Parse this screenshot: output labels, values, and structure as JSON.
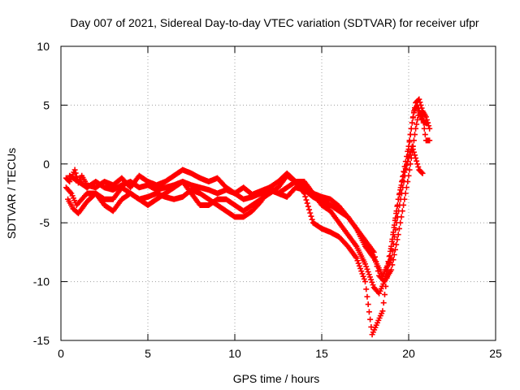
{
  "chart_data": {
    "type": "scatter",
    "title": "Day 007 of 2021, Sidereal Day-to-day VTEC variation (SDTVAR) for receiver ufpr",
    "xlabel": "GPS time / hours",
    "ylabel": "SDTVAR / TECUs",
    "xlim": [
      0,
      25
    ],
    "ylim": [
      -15,
      10
    ],
    "xticks": [
      0,
      5,
      10,
      15,
      20,
      25
    ],
    "yticks": [
      -15,
      -10,
      -5,
      0,
      5,
      10
    ],
    "xtick_labels": [
      "0",
      "5",
      "10",
      "15",
      "20",
      "25"
    ],
    "ytick_labels": [
      "-15",
      "-10",
      "-5",
      "0",
      "5",
      "10"
    ],
    "grid": true,
    "grid_style": "dotted",
    "marker": "+",
    "legend": "none",
    "colors": {
      "series": "#ff0000",
      "grid": "#a0a0a0",
      "axis": "#000000"
    },
    "series": [
      {
        "x": [
          0.3,
          0.5,
          0.8,
          1.0,
          1.2,
          1.5,
          2.0,
          2.5,
          3.0,
          3.5,
          4.0,
          4.5,
          5.0,
          5.5,
          6.0,
          6.5,
          7.0,
          7.5,
          8.0,
          8.5,
          9.0,
          9.5,
          10.0,
          10.5,
          11.0,
          11.5,
          12.0,
          12.5,
          13.0,
          13.5,
          14.0,
          14.5,
          15.0,
          15.5,
          16.0,
          16.5,
          17.0,
          17.5,
          18.0,
          18.3,
          18.6,
          19.0,
          19.3,
          19.6,
          20.0,
          20.2,
          20.4,
          20.6,
          20.8,
          21.0,
          21.2
        ],
        "y": [
          -1.2,
          -1.5,
          -0.5,
          -1.6,
          -1.0,
          -1.8,
          -2.0,
          -1.5,
          -1.8,
          -1.2,
          -2.0,
          -1.0,
          -1.5,
          -1.8,
          -1.5,
          -1.0,
          -0.5,
          -0.8,
          -1.2,
          -1.5,
          -1.2,
          -2.0,
          -2.5,
          -2.0,
          -2.6,
          -2.3,
          -2.0,
          -2.5,
          -2.0,
          -1.5,
          -1.5,
          -2.5,
          -2.8,
          -3.0,
          -3.6,
          -4.5,
          -5.5,
          -6.5,
          -7.5,
          -9.5,
          -10.0,
          -7.0,
          -4.0,
          -1.5,
          1.5,
          3.5,
          5.2,
          5.5,
          4.5,
          4.0,
          3.0
        ]
      },
      {
        "x": [
          0.3,
          0.6,
          0.9,
          1.2,
          1.5,
          2.0,
          2.5,
          3.0,
          3.5,
          4.0,
          4.5,
          5.0,
          5.5,
          6.0,
          6.5,
          7.0,
          7.5,
          8.0,
          8.5,
          9.0,
          9.5,
          10.0,
          10.5,
          11.0,
          11.5,
          12.0,
          12.5,
          13.0,
          13.5,
          14.0,
          14.5,
          15.0,
          15.5,
          16.0,
          16.5,
          17.0,
          17.5,
          18.0,
          18.3,
          18.6,
          19.0,
          19.4,
          19.7,
          20.0,
          20.2,
          20.4,
          20.6,
          20.8,
          21.0,
          21.2
        ],
        "y": [
          -2.0,
          -2.5,
          -3.5,
          -3.0,
          -2.5,
          -2.5,
          -3.0,
          -3.0,
          -2.0,
          -2.5,
          -3.0,
          -3.5,
          -3.0,
          -2.5,
          -2.0,
          -1.5,
          -2.5,
          -3.5,
          -3.5,
          -3.0,
          -3.0,
          -3.5,
          -4.0,
          -3.5,
          -3.0,
          -2.5,
          -2.0,
          -1.0,
          -1.5,
          -2.0,
          -2.5,
          -3.5,
          -4.0,
          -5.0,
          -6.0,
          -7.0,
          -8.5,
          -10.5,
          -11.0,
          -10.0,
          -9.0,
          -6.0,
          -3.5,
          -1.0,
          1.0,
          3.0,
          4.5,
          4.0,
          2.0,
          2.0
        ]
      },
      {
        "x": [
          0.4,
          0.7,
          1.0,
          1.5,
          2.0,
          2.5,
          3.0,
          3.5,
          4.0,
          4.5,
          5.0,
          5.5,
          6.0,
          6.5,
          7.0,
          7.5,
          8.0,
          8.5,
          9.0,
          9.5,
          10.0,
          10.5,
          11.0,
          11.5,
          12.0,
          12.5,
          13.0,
          13.5,
          14.0,
          14.5,
          15.0,
          15.5,
          16.0,
          16.5,
          17.0,
          17.5,
          17.9,
          18.2,
          18.5,
          18.8,
          19.1,
          19.4,
          19.7,
          20.0,
          20.2,
          20.4,
          20.6,
          20.8
        ],
        "y": [
          -3.0,
          -3.8,
          -4.2,
          -3.2,
          -2.5,
          -3.5,
          -4.0,
          -3.0,
          -2.5,
          -3.0,
          -2.8,
          -2.5,
          -2.8,
          -3.0,
          -2.8,
          -2.2,
          -2.5,
          -3.0,
          -3.5,
          -4.0,
          -4.5,
          -4.5,
          -4.0,
          -3.2,
          -2.0,
          -1.5,
          -0.8,
          -1.5,
          -2.5,
          -5.0,
          -5.5,
          -5.8,
          -6.2,
          -7.0,
          -8.0,
          -10.0,
          -14.5,
          -13.5,
          -12.5,
          -9.0,
          -6.0,
          -3.0,
          -1.0,
          0.5,
          1.5,
          0.5,
          -0.5,
          -0.8
        ]
      },
      {
        "x": [
          0.5,
          1.0,
          1.5,
          2.0,
          2.5,
          3.0,
          3.5,
          4.0,
          4.5,
          5.0,
          5.5,
          6.0,
          6.5,
          7.0,
          7.5,
          8.0,
          8.5,
          9.0,
          9.5,
          10.0,
          10.5,
          11.0,
          11.5,
          12.0,
          12.5,
          13.0,
          13.5,
          14.0,
          14.5,
          15.0,
          15.5,
          16.0,
          16.5,
          17.0,
          17.5,
          18.0,
          18.5,
          19.0,
          19.3,
          19.6,
          19.9,
          20.1,
          20.3,
          20.5,
          20.7,
          20.9,
          21.1
        ],
        "y": [
          -1.0,
          -1.5,
          -2.0,
          -1.5,
          -2.0,
          -2.2,
          -1.8,
          -1.5,
          -2.0,
          -1.8,
          -2.2,
          -2.0,
          -1.8,
          -1.5,
          -1.8,
          -2.0,
          -2.2,
          -2.5,
          -2.2,
          -2.5,
          -3.0,
          -2.8,
          -2.5,
          -2.2,
          -2.5,
          -2.8,
          -2.0,
          -2.2,
          -2.8,
          -3.2,
          -3.5,
          -4.0,
          -4.5,
          -5.5,
          -7.0,
          -8.0,
          -9.5,
          -8.0,
          -5.0,
          -2.5,
          0.0,
          2.5,
          4.5,
          5.0,
          4.0,
          3.5,
          3.5
        ]
      }
    ]
  }
}
